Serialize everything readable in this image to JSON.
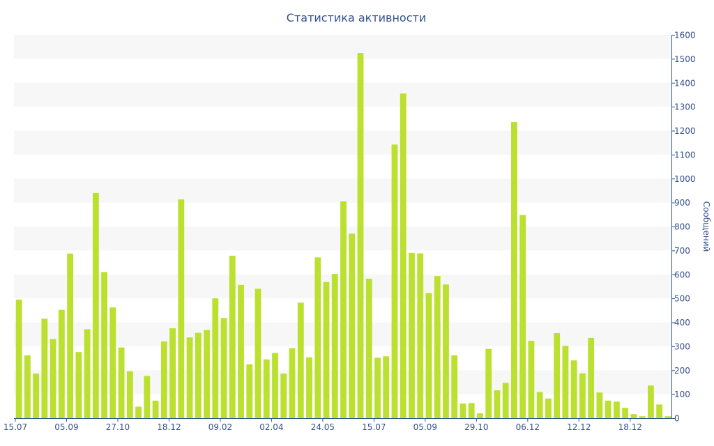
{
  "chart_data": {
    "type": "bar",
    "title": "Статистика активности",
    "ylabel": "Сообщений",
    "xlabel": "",
    "ylim": [
      0,
      1600
    ],
    "y_ticks": [
      0,
      100,
      200,
      300,
      400,
      500,
      600,
      700,
      800,
      900,
      1000,
      1100,
      1200,
      1300,
      1400,
      1500,
      1600
    ],
    "x_ticks": [
      {
        "label": "15.07",
        "index": 0
      },
      {
        "label": "05.09",
        "index": 6
      },
      {
        "label": "27.10",
        "index": 12
      },
      {
        "label": "18.12",
        "index": 18
      },
      {
        "label": "09.02",
        "index": 24
      },
      {
        "label": "02.04",
        "index": 30
      },
      {
        "label": "24.05",
        "index": 36
      },
      {
        "label": "15.07",
        "index": 42
      },
      {
        "label": "05.09",
        "index": 48
      },
      {
        "label": "29.10",
        "index": 54
      },
      {
        "label": "06.12",
        "index": 60
      },
      {
        "label": "12.12",
        "index": 66
      },
      {
        "label": "18.12",
        "index": 72
      }
    ],
    "values": [
      495,
      262,
      186,
      415,
      330,
      452,
      687,
      276,
      371,
      940,
      610,
      462,
      295,
      196,
      48,
      176,
      73,
      320,
      375,
      913,
      337,
      356,
      368,
      500,
      418,
      678,
      556,
      225,
      540,
      245,
      272,
      186,
      292,
      482,
      254,
      671,
      568,
      602,
      905,
      770,
      1524,
      582,
      252,
      258,
      1142,
      1355,
      690,
      688,
      522,
      593,
      558,
      262,
      61,
      63,
      20,
      289,
      116,
      147,
      1236,
      848,
      323,
      109,
      82,
      355,
      302,
      241,
      187,
      335,
      107,
      73,
      69,
      43,
      17,
      8,
      136,
      57,
      8
    ],
    "grid": "horizontal bands",
    "y_axis_position": "right",
    "colors": {
      "bar": "#bbe02f",
      "band": "#f7f7f7",
      "text": "#34508c"
    }
  }
}
